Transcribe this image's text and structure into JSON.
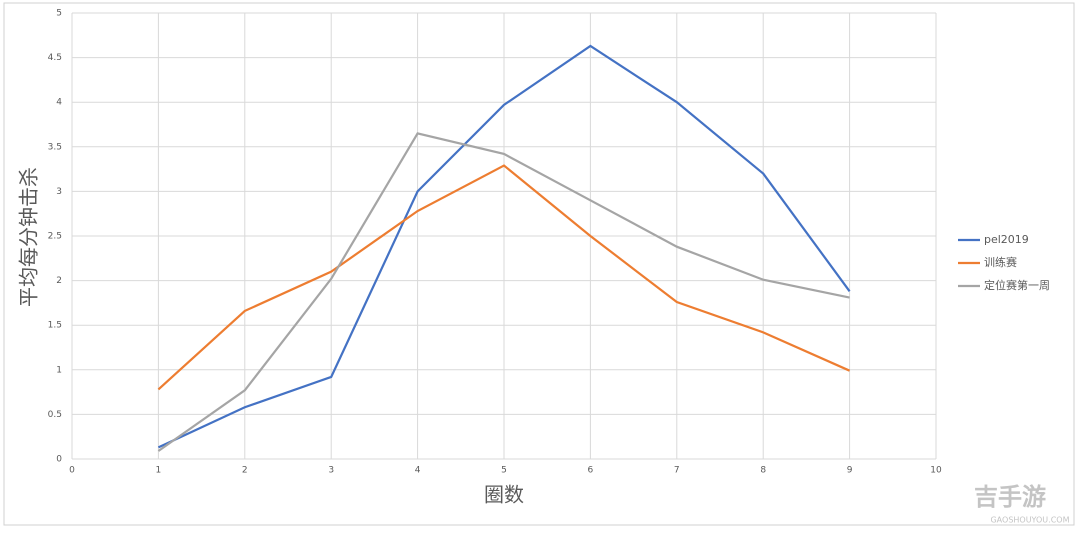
{
  "chart_data": {
    "type": "line",
    "x": [
      1,
      2,
      3,
      4,
      5,
      6,
      7,
      8,
      9
    ],
    "series": [
      {
        "name": "pel2019",
        "color": "#4472c4",
        "values": [
          0.13,
          0.58,
          0.92,
          3.0,
          3.97,
          4.63,
          4.0,
          3.2,
          1.88
        ]
      },
      {
        "name": "训练赛",
        "color": "#ed7d31",
        "values": [
          0.78,
          1.66,
          2.1,
          2.78,
          3.29,
          2.5,
          1.76,
          1.42,
          0.99
        ]
      },
      {
        "name": "定位赛第一周",
        "color": "#a5a5a5",
        "values": [
          0.09,
          0.77,
          2.02,
          3.65,
          3.42,
          2.9,
          2.38,
          2.01,
          1.81
        ]
      }
    ],
    "x_label": "圈数",
    "y_label": "平均每分钟击杀",
    "xlim": [
      0,
      10
    ],
    "xticks": [
      0,
      1,
      2,
      3,
      4,
      5,
      6,
      7,
      8,
      9,
      10
    ],
    "ylim": [
      0,
      5
    ],
    "yticks": [
      0,
      0.5,
      1,
      1.5,
      2,
      2.5,
      3,
      3.5,
      4,
      4.5,
      5
    ],
    "grid": true,
    "legend": "right"
  },
  "watermark": {
    "logo": "吉手游",
    "site": "GAOSHOUYOU.COM"
  }
}
